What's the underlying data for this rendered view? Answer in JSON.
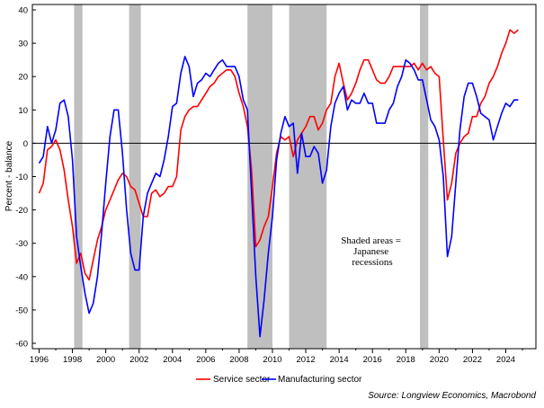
{
  "chart_data": {
    "type": "line",
    "ylabel": "Percent - balance",
    "ylim": [
      -60,
      40
    ],
    "yticks": [
      40,
      30,
      20,
      10,
      0,
      -10,
      -20,
      -30,
      -40,
      -50,
      -60
    ],
    "xlim": [
      1996,
      2025.2
    ],
    "xticks": [
      1996,
      1998,
      2000,
      2002,
      2004,
      2006,
      2008,
      2010,
      2012,
      2014,
      2016,
      2018,
      2020,
      2022,
      2024
    ],
    "grid": false,
    "zero_line": true,
    "recession_periods": [
      [
        1998.1,
        1998.6
      ],
      [
        2001.4,
        2002.1
      ],
      [
        2008.5,
        2010.0
      ],
      [
        2011.0,
        2013.25
      ],
      [
        2018.85,
        2019.35
      ]
    ],
    "recession_color": "#bfbfbf",
    "annotation": [
      "Shaded areas =",
      "Japanese",
      "recessions"
    ],
    "legend_position": "bottom-center",
    "source": "Source: Longview Economics, Macrobond",
    "series": [
      {
        "name": "Service sector",
        "color": "#ff0000",
        "points": [
          [
            1996.0,
            -15
          ],
          [
            1996.25,
            -12
          ],
          [
            1996.5,
            -2
          ],
          [
            1996.75,
            -1
          ],
          [
            1997.0,
            1
          ],
          [
            1997.25,
            -2
          ],
          [
            1997.5,
            -8
          ],
          [
            1997.75,
            -17
          ],
          [
            1998.0,
            -25
          ],
          [
            1998.25,
            -36
          ],
          [
            1998.5,
            -33
          ],
          [
            1998.75,
            -39
          ],
          [
            1999.0,
            -41
          ],
          [
            1999.25,
            -35
          ],
          [
            1999.5,
            -29
          ],
          [
            1999.75,
            -25
          ],
          [
            2000.0,
            -20
          ],
          [
            2000.25,
            -17
          ],
          [
            2000.5,
            -14
          ],
          [
            2000.75,
            -11
          ],
          [
            2001.0,
            -9
          ],
          [
            2001.25,
            -10
          ],
          [
            2001.5,
            -13
          ],
          [
            2001.75,
            -14
          ],
          [
            2002.0,
            -18
          ],
          [
            2002.25,
            -22
          ],
          [
            2002.5,
            -22
          ],
          [
            2002.75,
            -15
          ],
          [
            2003.0,
            -14
          ],
          [
            2003.25,
            -16
          ],
          [
            2003.5,
            -15
          ],
          [
            2003.75,
            -13
          ],
          [
            2004.0,
            -13
          ],
          [
            2004.25,
            -10
          ],
          [
            2004.5,
            4
          ],
          [
            2004.75,
            8
          ],
          [
            2005.0,
            10
          ],
          [
            2005.25,
            11
          ],
          [
            2005.5,
            11
          ],
          [
            2005.75,
            13
          ],
          [
            2006.0,
            15
          ],
          [
            2006.25,
            17
          ],
          [
            2006.5,
            18
          ],
          [
            2006.75,
            20
          ],
          [
            2007.0,
            21
          ],
          [
            2007.25,
            22
          ],
          [
            2007.5,
            22
          ],
          [
            2007.75,
            20
          ],
          [
            2008.0,
            15
          ],
          [
            2008.25,
            11
          ],
          [
            2008.5,
            5
          ],
          [
            2008.75,
            -8
          ],
          [
            2009.0,
            -31
          ],
          [
            2009.25,
            -29
          ],
          [
            2009.5,
            -25
          ],
          [
            2009.75,
            -22
          ],
          [
            2010.0,
            -13
          ],
          [
            2010.25,
            -3
          ],
          [
            2010.5,
            2
          ],
          [
            2010.75,
            1
          ],
          [
            2011.0,
            2
          ],
          [
            2011.25,
            -4
          ],
          [
            2011.5,
            1
          ],
          [
            2011.75,
            3
          ],
          [
            2012.0,
            5
          ],
          [
            2012.25,
            8
          ],
          [
            2012.5,
            8
          ],
          [
            2012.75,
            4
          ],
          [
            2013.0,
            6
          ],
          [
            2013.25,
            10
          ],
          [
            2013.5,
            12
          ],
          [
            2013.75,
            20
          ],
          [
            2014.0,
            24
          ],
          [
            2014.25,
            18
          ],
          [
            2014.5,
            13
          ],
          [
            2014.75,
            15
          ],
          [
            2015.0,
            18
          ],
          [
            2015.25,
            22
          ],
          [
            2015.5,
            25
          ],
          [
            2015.75,
            25
          ],
          [
            2016.0,
            22
          ],
          [
            2016.25,
            19
          ],
          [
            2016.5,
            18
          ],
          [
            2016.75,
            18
          ],
          [
            2017.0,
            20
          ],
          [
            2017.25,
            23
          ],
          [
            2017.5,
            23
          ],
          [
            2017.75,
            23
          ],
          [
            2018.0,
            23
          ],
          [
            2018.25,
            23
          ],
          [
            2018.5,
            24
          ],
          [
            2018.75,
            22
          ],
          [
            2019.0,
            24
          ],
          [
            2019.25,
            22
          ],
          [
            2019.5,
            23
          ],
          [
            2019.75,
            21
          ],
          [
            2020.0,
            20
          ],
          [
            2020.25,
            1
          ],
          [
            2020.5,
            -17
          ],
          [
            2020.75,
            -12
          ],
          [
            2021.0,
            -3
          ],
          [
            2021.25,
            0
          ],
          [
            2021.5,
            2
          ],
          [
            2021.75,
            3
          ],
          [
            2022.0,
            8
          ],
          [
            2022.25,
            8
          ],
          [
            2022.5,
            12
          ],
          [
            2022.75,
            14
          ],
          [
            2023.0,
            18
          ],
          [
            2023.25,
            20
          ],
          [
            2023.5,
            23
          ],
          [
            2023.75,
            27
          ],
          [
            2024.0,
            30
          ],
          [
            2024.25,
            34
          ],
          [
            2024.5,
            33
          ],
          [
            2024.75,
            34
          ]
        ]
      },
      {
        "name": "Manufacturing sector",
        "color": "#0000ff",
        "points": [
          [
            1996.0,
            -6
          ],
          [
            1996.25,
            -4
          ],
          [
            1996.5,
            5
          ],
          [
            1996.75,
            0
          ],
          [
            1997.0,
            4
          ],
          [
            1997.25,
            12
          ],
          [
            1997.5,
            13
          ],
          [
            1997.75,
            8
          ],
          [
            1998.0,
            -5
          ],
          [
            1998.25,
            -28
          ],
          [
            1998.5,
            -37
          ],
          [
            1998.75,
            -45
          ],
          [
            1999.0,
            -51
          ],
          [
            1999.25,
            -48
          ],
          [
            1999.5,
            -40
          ],
          [
            1999.75,
            -27
          ],
          [
            2000.0,
            -12
          ],
          [
            2000.25,
            2
          ],
          [
            2000.5,
            10
          ],
          [
            2000.75,
            10
          ],
          [
            2001.0,
            -3
          ],
          [
            2001.25,
            -20
          ],
          [
            2001.5,
            -33
          ],
          [
            2001.75,
            -38
          ],
          [
            2002.0,
            -38
          ],
          [
            2002.25,
            -22
          ],
          [
            2002.5,
            -15
          ],
          [
            2002.75,
            -12
          ],
          [
            2003.0,
            -9
          ],
          [
            2003.25,
            -10
          ],
          [
            2003.5,
            -5
          ],
          [
            2003.75,
            2
          ],
          [
            2004.0,
            11
          ],
          [
            2004.25,
            12
          ],
          [
            2004.5,
            21
          ],
          [
            2004.75,
            26
          ],
          [
            2005.0,
            23
          ],
          [
            2005.25,
            14
          ],
          [
            2005.5,
            18
          ],
          [
            2005.75,
            19
          ],
          [
            2006.0,
            21
          ],
          [
            2006.25,
            20
          ],
          [
            2006.5,
            22
          ],
          [
            2006.75,
            24
          ],
          [
            2007.0,
            25
          ],
          [
            2007.25,
            23
          ],
          [
            2007.5,
            23
          ],
          [
            2007.75,
            23
          ],
          [
            2008.0,
            20
          ],
          [
            2008.25,
            13
          ],
          [
            2008.5,
            10
          ],
          [
            2008.75,
            -15
          ],
          [
            2009.0,
            -40
          ],
          [
            2009.25,
            -58
          ],
          [
            2009.5,
            -47
          ],
          [
            2009.75,
            -33
          ],
          [
            2010.0,
            -22
          ],
          [
            2010.25,
            -5
          ],
          [
            2010.5,
            3
          ],
          [
            2010.75,
            8
          ],
          [
            2011.0,
            5
          ],
          [
            2011.25,
            6
          ],
          [
            2011.5,
            -9
          ],
          [
            2011.75,
            3
          ],
          [
            2012.0,
            -4
          ],
          [
            2012.25,
            -4
          ],
          [
            2012.5,
            -1
          ],
          [
            2012.75,
            -3
          ],
          [
            2013.0,
            -12
          ],
          [
            2013.25,
            -8
          ],
          [
            2013.5,
            5
          ],
          [
            2013.75,
            12
          ],
          [
            2014.0,
            15
          ],
          [
            2014.25,
            17
          ],
          [
            2014.5,
            10
          ],
          [
            2014.75,
            13
          ],
          [
            2015.0,
            12
          ],
          [
            2015.25,
            12
          ],
          [
            2015.5,
            15
          ],
          [
            2015.75,
            12
          ],
          [
            2016.0,
            12
          ],
          [
            2016.25,
            6
          ],
          [
            2016.5,
            6
          ],
          [
            2016.75,
            6
          ],
          [
            2017.0,
            10
          ],
          [
            2017.25,
            12
          ],
          [
            2017.5,
            17
          ],
          [
            2017.75,
            20
          ],
          [
            2018.0,
            25
          ],
          [
            2018.25,
            24
          ],
          [
            2018.5,
            22
          ],
          [
            2018.75,
            19
          ],
          [
            2019.0,
            19
          ],
          [
            2019.25,
            13
          ],
          [
            2019.5,
            7
          ],
          [
            2019.75,
            5
          ],
          [
            2020.0,
            1
          ],
          [
            2020.25,
            -10
          ],
          [
            2020.5,
            -34
          ],
          [
            2020.75,
            -28
          ],
          [
            2021.0,
            -12
          ],
          [
            2021.25,
            4
          ],
          [
            2021.5,
            14
          ],
          [
            2021.75,
            18
          ],
          [
            2022.0,
            18
          ],
          [
            2022.25,
            14
          ],
          [
            2022.5,
            9
          ],
          [
            2022.75,
            8
          ],
          [
            2023.0,
            7
          ],
          [
            2023.25,
            1
          ],
          [
            2023.5,
            5
          ],
          [
            2023.75,
            9
          ],
          [
            2024.0,
            12
          ],
          [
            2024.25,
            11
          ],
          [
            2024.5,
            13
          ],
          [
            2024.75,
            13
          ]
        ]
      }
    ]
  }
}
